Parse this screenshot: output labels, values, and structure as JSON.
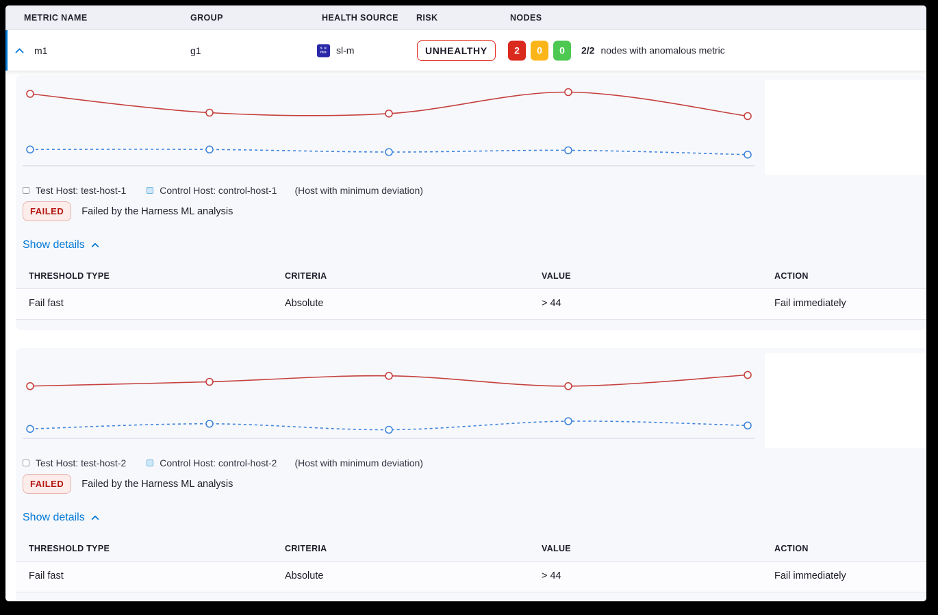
{
  "columns": {
    "metric_name": "METRIC NAME",
    "group": "GROUP",
    "health_source": "HEALTH SOURCE",
    "risk": "RISK",
    "nodes": "NODES"
  },
  "metric_row": {
    "metric_name": "m1",
    "group": "g1",
    "health_source": {
      "icon": "sumologic-icon",
      "icon_text_top": "s u",
      "icon_text_bottom": "mo",
      "label": "sl-m"
    },
    "risk_badge": "UNHEALTHY",
    "nodes": {
      "counts": [
        {
          "value": "2",
          "color": "#da291d",
          "status": "unhealthy"
        },
        {
          "value": "0",
          "color": "#fcb519",
          "status": "warning"
        },
        {
          "value": "0",
          "color": "#4dc952",
          "status": "healthy"
        }
      ],
      "ratio": "2/2",
      "label": "nodes with anomalous metric"
    }
  },
  "sections": [
    {
      "legend": {
        "test_label": "Test Host: test-host-1",
        "control_label": "Control Host: control-host-1",
        "control_note": "(Host with minimum deviation)"
      },
      "status": {
        "badge": "FAILED",
        "message": "Failed by the Harness ML analysis"
      },
      "details_toggle": "Show details",
      "threshold_table": {
        "headers": [
          "THRESHOLD TYPE",
          "CRITERIA",
          "VALUE",
          "ACTION"
        ],
        "rows": [
          [
            "Fail fast",
            "Absolute",
            "> 44",
            "Fail immediately"
          ]
        ]
      }
    },
    {
      "legend": {
        "test_label": "Test Host: test-host-2",
        "control_label": "Control Host: control-host-2",
        "control_note": "(Host with minimum deviation)"
      },
      "status": {
        "badge": "FAILED",
        "message": "Failed by the Harness ML analysis"
      },
      "details_toggle": "Show details",
      "threshold_table": {
        "headers": [
          "THRESHOLD TYPE",
          "CRITERIA",
          "VALUE",
          "ACTION"
        ],
        "rows": [
          [
            "Fail fast",
            "Absolute",
            "> 44",
            "Fail immediately"
          ]
        ]
      }
    }
  ],
  "chart_data": [
    {
      "type": "line",
      "x": [
        0,
        1,
        2,
        3,
        4
      ],
      "ylim": [
        0,
        100
      ],
      "grid": false,
      "legend_position": "below",
      "series": [
        {
          "name": "Test Host: test-host-1",
          "color": "#c5413e",
          "style": "solid",
          "values": [
            84,
            62,
            61,
            86,
            58
          ]
        },
        {
          "name": "Control Host: control-host-1",
          "color": "#3f84dc",
          "style": "dashed",
          "values": [
            19,
            19,
            16,
            18,
            13
          ]
        }
      ]
    },
    {
      "type": "line",
      "x": [
        0,
        1,
        2,
        3,
        4
      ],
      "ylim": [
        0,
        100
      ],
      "grid": false,
      "legend_position": "below",
      "series": [
        {
          "name": "Test Host: test-host-2",
          "color": "#c5413e",
          "style": "solid",
          "values": [
            61,
            66,
            73,
            61,
            74
          ]
        },
        {
          "name": "Control Host: control-host-2",
          "color": "#3f84dc",
          "style": "dashed",
          "values": [
            11,
            17,
            10,
            20,
            15
          ]
        }
      ]
    }
  ],
  "colors": {
    "accent_blue": "#0278d5",
    "risk_red": "#d9302a",
    "node_red": "#da291d",
    "node_yellow": "#fcb519",
    "node_green": "#4dc952",
    "test_line": "#c5413e",
    "control_line": "#3f84dc",
    "panel_bg": "#f7f8fc",
    "failed_text": "#b41710",
    "failed_bg": "#fcecea"
  }
}
